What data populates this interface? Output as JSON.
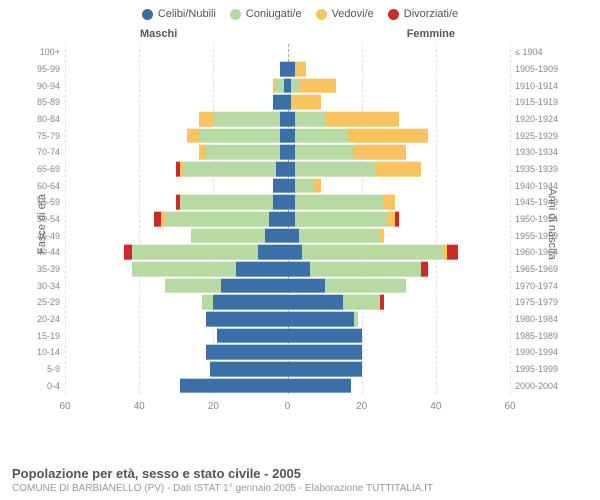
{
  "legend": [
    {
      "label": "Celibi/Nubili",
      "color": "#3c6fa6"
    },
    {
      "label": "Coniugati/e",
      "color": "#b7d9a2"
    },
    {
      "label": "Vedovi/e",
      "color": "#f7c45f"
    },
    {
      "label": "Divorziati/e",
      "color": "#cc2a2a"
    }
  ],
  "headers": {
    "male": "Maschi",
    "female": "Femmine"
  },
  "axis": {
    "left": "Fasce di età",
    "right": "Anni di nascita"
  },
  "xmax": 60,
  "xticks": [
    60,
    40,
    20,
    0,
    20,
    40,
    60
  ],
  "colors": {
    "cel": "#3c6fa6",
    "con": "#b7d9a2",
    "ved": "#f7c45f",
    "div": "#cc2a2a"
  },
  "background": "#ffffff",
  "grid_color": "#e0e0e0",
  "rows": [
    {
      "age": "0-4",
      "birth": "2000-2004",
      "m": {
        "cel": 29,
        "con": 0,
        "ved": 0,
        "div": 0
      },
      "f": {
        "cel": 17,
        "con": 0,
        "ved": 0,
        "div": 0
      }
    },
    {
      "age": "5-9",
      "birth": "1995-1999",
      "m": {
        "cel": 21,
        "con": 0,
        "ved": 0,
        "div": 0
      },
      "f": {
        "cel": 20,
        "con": 0,
        "ved": 0,
        "div": 0
      }
    },
    {
      "age": "10-14",
      "birth": "1990-1994",
      "m": {
        "cel": 22,
        "con": 0,
        "ved": 0,
        "div": 0
      },
      "f": {
        "cel": 20,
        "con": 0,
        "ved": 0,
        "div": 0
      }
    },
    {
      "age": "15-19",
      "birth": "1985-1989",
      "m": {
        "cel": 19,
        "con": 0,
        "ved": 0,
        "div": 0
      },
      "f": {
        "cel": 20,
        "con": 0,
        "ved": 0,
        "div": 0
      }
    },
    {
      "age": "20-24",
      "birth": "1980-1984",
      "m": {
        "cel": 22,
        "con": 0,
        "ved": 0,
        "div": 0
      },
      "f": {
        "cel": 18,
        "con": 1,
        "ved": 0,
        "div": 0
      }
    },
    {
      "age": "25-29",
      "birth": "1975-1979",
      "m": {
        "cel": 20,
        "con": 3,
        "ved": 0,
        "div": 0
      },
      "f": {
        "cel": 15,
        "con": 10,
        "ved": 0,
        "div": 1
      }
    },
    {
      "age": "30-34",
      "birth": "1970-1974",
      "m": {
        "cel": 18,
        "con": 15,
        "ved": 0,
        "div": 0
      },
      "f": {
        "cel": 10,
        "con": 22,
        "ved": 0,
        "div": 0
      }
    },
    {
      "age": "35-39",
      "birth": "1965-1969",
      "m": {
        "cel": 14,
        "con": 28,
        "ved": 0,
        "div": 0
      },
      "f": {
        "cel": 6,
        "con": 30,
        "ved": 0,
        "div": 2
      }
    },
    {
      "age": "40-44",
      "birth": "1960-1964",
      "m": {
        "cel": 8,
        "con": 34,
        "ved": 0,
        "div": 2
      },
      "f": {
        "cel": 4,
        "con": 38,
        "ved": 1,
        "div": 3
      }
    },
    {
      "age": "45-49",
      "birth": "1955-1959",
      "m": {
        "cel": 6,
        "con": 20,
        "ved": 0,
        "div": 0
      },
      "f": {
        "cel": 3,
        "con": 22,
        "ved": 1,
        "div": 0
      }
    },
    {
      "age": "50-54",
      "birth": "1950-1954",
      "m": {
        "cel": 5,
        "con": 28,
        "ved": 1,
        "div": 2
      },
      "f": {
        "cel": 2,
        "con": 25,
        "ved": 2,
        "div": 1
      }
    },
    {
      "age": "55-59",
      "birth": "1945-1949",
      "m": {
        "cel": 4,
        "con": 25,
        "ved": 0,
        "div": 1
      },
      "f": {
        "cel": 2,
        "con": 24,
        "ved": 3,
        "div": 0
      }
    },
    {
      "age": "60-64",
      "birth": "1940-1944",
      "m": {
        "cel": 4,
        "con": 0,
        "ved": 0,
        "div": 0
      },
      "f": {
        "cel": 2,
        "con": 5,
        "ved": 2,
        "div": 0
      }
    },
    {
      "age": "65-69",
      "birth": "1935-1939",
      "m": {
        "cel": 3,
        "con": 25,
        "ved": 1,
        "div": 1
      },
      "f": {
        "cel": 2,
        "con": 22,
        "ved": 12,
        "div": 0
      }
    },
    {
      "age": "70-74",
      "birth": "1930-1934",
      "m": {
        "cel": 2,
        "con": 20,
        "ved": 2,
        "div": 0
      },
      "f": {
        "cel": 2,
        "con": 16,
        "ved": 14,
        "div": 0
      }
    },
    {
      "age": "75-79",
      "birth": "1925-1929",
      "m": {
        "cel": 2,
        "con": 22,
        "ved": 3,
        "div": 0
      },
      "f": {
        "cel": 2,
        "con": 14,
        "ved": 22,
        "div": 0
      }
    },
    {
      "age": "80-84",
      "birth": "1920-1924",
      "m": {
        "cel": 2,
        "con": 18,
        "ved": 4,
        "div": 0
      },
      "f": {
        "cel": 2,
        "con": 8,
        "ved": 20,
        "div": 0
      }
    },
    {
      "age": "85-89",
      "birth": "1915-1919",
      "m": {
        "cel": 4,
        "con": 0,
        "ved": 0,
        "div": 0
      },
      "f": {
        "cel": 1,
        "con": 0,
        "ved": 8,
        "div": 0
      }
    },
    {
      "age": "90-94",
      "birth": "1910-1914",
      "m": {
        "cel": 1,
        "con": 2,
        "ved": 1,
        "div": 0
      },
      "f": {
        "cel": 1,
        "con": 2,
        "ved": 10,
        "div": 0
      }
    },
    {
      "age": "95-99",
      "birth": "1905-1909",
      "m": {
        "cel": 2,
        "con": 0,
        "ved": 0,
        "div": 0
      },
      "f": {
        "cel": 2,
        "con": 0,
        "ved": 3,
        "div": 0
      }
    },
    {
      "age": "100+",
      "birth": "≤ 1904",
      "m": {
        "cel": 0,
        "con": 0,
        "ved": 0,
        "div": 0
      },
      "f": {
        "cel": 0,
        "con": 0,
        "ved": 0,
        "div": 0
      }
    }
  ],
  "title": "Popolazione per età, sesso e stato civile - 2005",
  "subtitle": "COMUNE DI BARBIANELLO (PV) - Dati ISTAT 1° gennaio 2005 - Elaborazione TUTTITALIA.IT"
}
